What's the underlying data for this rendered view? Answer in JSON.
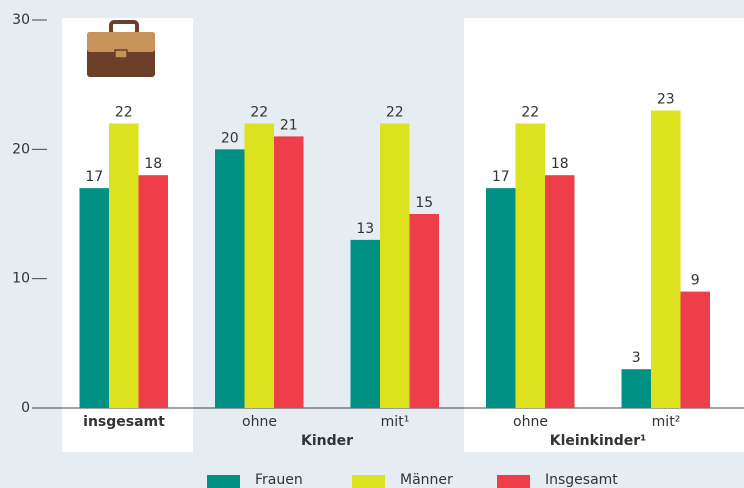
{
  "chart_data": {
    "type": "bar",
    "categories": [
      "insgesamt",
      "ohne",
      "mit¹",
      "ohne",
      "mit²"
    ],
    "group_labels": [
      "Kinder",
      "Kleinkinder¹"
    ],
    "series": [
      {
        "name": "Frauen",
        "color": "#009184",
        "values": [
          17,
          20,
          13,
          17,
          3
        ]
      },
      {
        "name": "Männer",
        "color": "#dde21e",
        "values": [
          22,
          22,
          22,
          22,
          23
        ]
      },
      {
        "name": "Insgesamt",
        "color": "#ee3e4a",
        "values": [
          18,
          21,
          15,
          18,
          9
        ]
      }
    ],
    "ylim": [
      0,
      30
    ],
    "yticks": [
      0,
      10,
      20,
      30
    ],
    "legend": "bottom"
  }
}
